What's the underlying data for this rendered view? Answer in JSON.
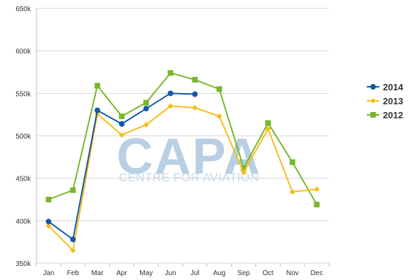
{
  "chart_data": {
    "type": "line",
    "categories": [
      "Jan",
      "Feb",
      "Mar",
      "Apr",
      "May",
      "Jun",
      "Jul",
      "Aug",
      "Sep",
      "Oct",
      "Nov",
      "Dec"
    ],
    "series": [
      {
        "name": "2014",
        "color": "#0f5aa6",
        "marker": "circle",
        "values": [
          399000,
          378000,
          530000,
          514000,
          532000,
          550000,
          549000,
          null,
          null,
          null,
          null,
          null
        ]
      },
      {
        "name": "2013",
        "color": "#f5be1a",
        "marker": "diamond",
        "values": [
          394000,
          365000,
          526000,
          501000,
          513000,
          535000,
          533000,
          523000,
          457000,
          508000,
          434000,
          437000
        ]
      },
      {
        "name": "2012",
        "color": "#77b829",
        "marker": "square",
        "values": [
          425000,
          436000,
          559000,
          523000,
          539000,
          574000,
          566000,
          555000,
          462000,
          515000,
          469000,
          419000
        ]
      }
    ],
    "ylim": [
      350000,
      650000
    ],
    "y_ticks": [
      350000,
      400000,
      450000,
      500000,
      550000,
      600000,
      650000
    ],
    "y_tick_labels": [
      "350k",
      "400k",
      "450k",
      "500k",
      "550k",
      "600k",
      "650k"
    ],
    "grid": "horizontal",
    "legend_position": "right",
    "title": "",
    "xlabel": "",
    "ylabel": ""
  },
  "watermark": {
    "logo_text": "CAPA",
    "tagline": "CENTRE FOR AVIATION"
  }
}
